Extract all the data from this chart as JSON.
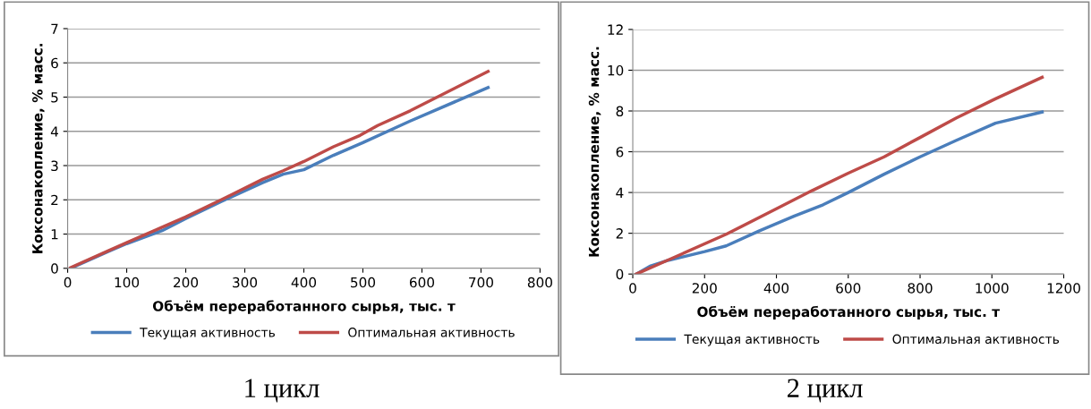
{
  "chart_data": [
    {
      "type": "line",
      "title": "1 цикл",
      "xlabel": "Объём переработанного сырья, тыс. т",
      "ylabel": "Коксонакопление, % масс.",
      "xlim": [
        0,
        800
      ],
      "xticks": [
        0,
        100,
        200,
        300,
        400,
        500,
        600,
        700,
        800
      ],
      "ylim": [
        0,
        7
      ],
      "yticks": [
        0,
        1,
        2,
        3,
        4,
        5,
        6,
        7
      ],
      "grid": "y",
      "legend": "bottom",
      "marker": "none",
      "line_style": "solid",
      "series": [
        {
          "name": "Текущая активность",
          "color": "#4a7ebb",
          "x": [
            5,
            70,
            100,
            160,
            200,
            260,
            330,
            365,
            400,
            450,
            500,
            580,
            712
          ],
          "values": [
            0,
            0.5,
            0.72,
            1.1,
            1.45,
            1.95,
            2.5,
            2.75,
            2.88,
            3.3,
            3.67,
            4.3,
            5.28
          ]
        },
        {
          "name": "Оптимальная активность",
          "color": "#be4b48",
          "x": [
            5,
            70,
            100,
            160,
            200,
            260,
            330,
            365,
            400,
            450,
            495,
            525,
            580,
            712
          ],
          "values": [
            0.02,
            0.52,
            0.75,
            1.2,
            1.5,
            2.0,
            2.6,
            2.85,
            3.12,
            3.55,
            3.88,
            4.17,
            4.6,
            5.75
          ]
        }
      ]
    },
    {
      "type": "line",
      "title": "2 цикл",
      "xlabel": "Объём переработанного сырья, тыс. т",
      "ylabel": "Коксонакопление, % масс.",
      "xlim": [
        0,
        1200
      ],
      "xticks": [
        0,
        200,
        400,
        600,
        800,
        1000,
        1200
      ],
      "ylim": [
        0,
        12
      ],
      "yticks": [
        0,
        2,
        4,
        6,
        8,
        10,
        12
      ],
      "grid": "y",
      "legend": "bottom",
      "marker": "none",
      "line_style": "solid",
      "series": [
        {
          "name": "Текущая активность",
          "color": "#4a7ebb",
          "x": [
            10,
            50,
            100,
            200,
            260,
            350,
            450,
            530,
            600,
            700,
            800,
            900,
            1010,
            1140
          ],
          "values": [
            0,
            0.4,
            0.68,
            1.1,
            1.38,
            2.1,
            2.85,
            3.4,
            4.0,
            4.9,
            5.75,
            6.55,
            7.4,
            7.95
          ]
        },
        {
          "name": "Оптимальная активность",
          "color": "#be4b48",
          "x": [
            10,
            100,
            260,
            400,
            500,
            600,
            700,
            800,
            900,
            1010,
            1140
          ],
          "values": [
            0,
            0.7,
            1.95,
            3.2,
            4.1,
            4.95,
            5.75,
            6.7,
            7.65,
            8.6,
            9.65
          ]
        }
      ]
    }
  ]
}
